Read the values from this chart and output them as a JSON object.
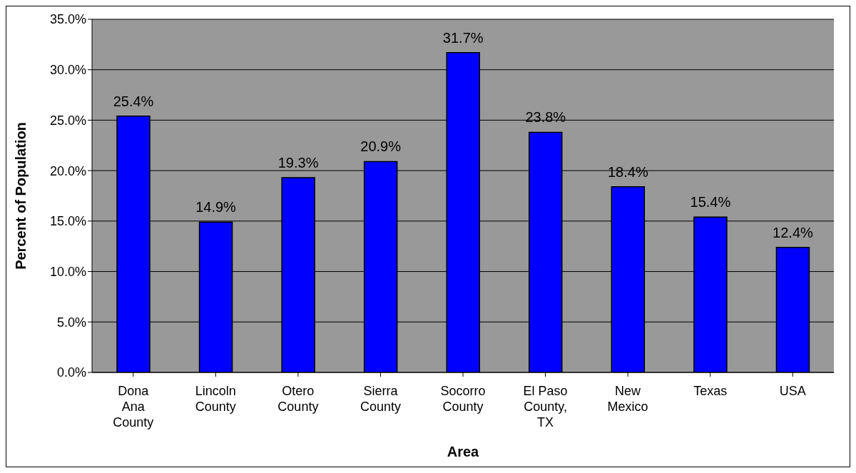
{
  "chart_data": {
    "type": "bar",
    "xlabel": "Area",
    "ylabel": "Percent of Population",
    "categories": [
      "Dona Ana County",
      "Lincoln County",
      "Otero County",
      "Sierra County",
      "Socorro County",
      "El Paso County, TX",
      "New Mexico",
      "Texas",
      "USA"
    ],
    "values": [
      25.4,
      14.9,
      19.3,
      20.9,
      31.7,
      23.8,
      18.4,
      15.4,
      12.4
    ],
    "value_labels": [
      "25.4%",
      "14.9%",
      "19.3%",
      "20.9%",
      "31.7%",
      "23.8%",
      "18.4%",
      "15.4%",
      "12.4%"
    ],
    "color": "#0000ff",
    "ylim": [
      0,
      35
    ],
    "yticks": [
      {
        "value": 0,
        "label": "0.0%"
      },
      {
        "value": 5,
        "label": "5.0%"
      },
      {
        "value": 10,
        "label": "10.0%"
      },
      {
        "value": 15,
        "label": "15.0%"
      },
      {
        "value": 20,
        "label": "20.0%"
      },
      {
        "value": 25,
        "label": "25.0%"
      },
      {
        "value": 30,
        "label": "30.0%"
      },
      {
        "value": 35,
        "label": "35.0%"
      }
    ],
    "grid": "y",
    "legend": false
  }
}
